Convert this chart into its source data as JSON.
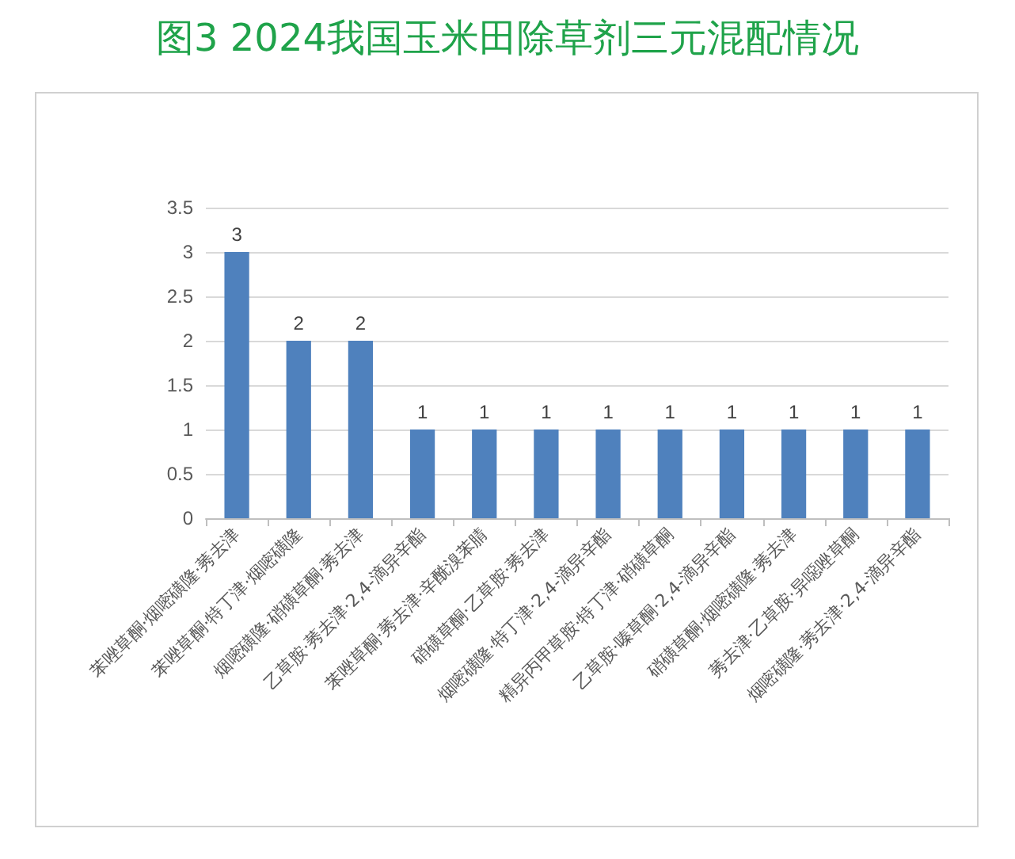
{
  "chart_data": {
    "type": "bar",
    "title": "图3  2024我国玉米田除草剂三元混配情况",
    "categories": [
      "苯唑草酮·烟嘧磺隆·莠去津",
      "苯唑草酮·特丁津·烟嘧磺隆",
      "烟嘧磺隆·硝磺草酮·莠去津",
      "乙草胺·莠去津·2,4-滴异辛酯",
      "苯唑草酮·莠去津·辛酰溴苯腈",
      "硝磺草酮·乙草胺·莠去津",
      "烟嘧磺隆·特丁津·2,4-滴异辛酯",
      "精异丙甲草胺·特丁津·硝磺草酮",
      "乙草胺·嗪草酮·2,4-滴异辛酯",
      "硝磺草酮·烟嘧磺隆·莠去津",
      "莠去津·乙草胺·异噁唑草酮",
      "烟嘧磺隆·莠去津·2,4-滴异辛酯"
    ],
    "values": [
      3,
      2,
      2,
      1,
      1,
      1,
      1,
      1,
      1,
      1,
      1,
      1
    ],
    "color": "#4f81bd",
    "ylim": [
      0,
      3.5
    ],
    "yticks": [
      0,
      0.5,
      1,
      1.5,
      2,
      2.5,
      3,
      3.5
    ],
    "grid": "y",
    "data_labels": true
  }
}
